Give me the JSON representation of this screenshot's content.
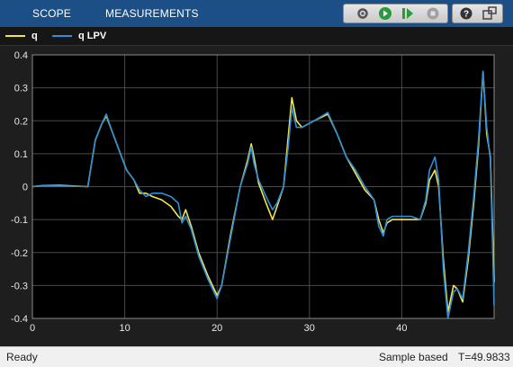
{
  "toolbar": {
    "tabs": [
      {
        "label": "SCOPE"
      },
      {
        "label": "MEASUREMENTS"
      }
    ],
    "buttons": [
      "settings-icon",
      "run-icon",
      "step-forward-icon",
      "stop-icon",
      "help-icon",
      "undock-icon"
    ]
  },
  "legend": [
    {
      "name": "q",
      "color": "#f2e44a"
    },
    {
      "name": "q LPV",
      "color": "#2f8fd6"
    }
  ],
  "status": {
    "left": "Ready",
    "mode": "Sample based",
    "time": "T=49.9833"
  },
  "chart_data": {
    "type": "line",
    "xlim": [
      0,
      50
    ],
    "ylim": [
      -0.4,
      0.4
    ],
    "xticks": [
      0,
      10,
      20,
      30,
      40
    ],
    "yticks": [
      0.4,
      0.3,
      0.2,
      0.1,
      0,
      -0.1,
      -0.2,
      -0.3,
      -0.4
    ],
    "grid": true,
    "background": "#000000",
    "series": [
      {
        "name": "q",
        "color": "#f2e44a",
        "points": [
          [
            0,
            0
          ],
          [
            1,
            0.003
          ],
          [
            3,
            0.004
          ],
          [
            6,
            0
          ],
          [
            6.4,
            0.07
          ],
          [
            6.8,
            0.14
          ],
          [
            7.5,
            0.19
          ],
          [
            8,
            0.215
          ],
          [
            8.6,
            0.17
          ],
          [
            9.4,
            0.11
          ],
          [
            10.2,
            0.05
          ],
          [
            11,
            0.02
          ],
          [
            11.6,
            -0.02
          ],
          [
            12.3,
            -0.02
          ],
          [
            13,
            -0.03
          ],
          [
            14,
            -0.04
          ],
          [
            15,
            -0.06
          ],
          [
            15.8,
            -0.09
          ],
          [
            16.2,
            -0.1
          ],
          [
            16.6,
            -0.07
          ],
          [
            17.2,
            -0.12
          ],
          [
            18,
            -0.2
          ],
          [
            19,
            -0.27
          ],
          [
            20,
            -0.33
          ],
          [
            20.5,
            -0.3
          ],
          [
            21.5,
            -0.14
          ],
          [
            22.5,
            0
          ],
          [
            23.3,
            0.08
          ],
          [
            23.7,
            0.13
          ],
          [
            24,
            0.09
          ],
          [
            24.5,
            0.01
          ],
          [
            25.3,
            -0.05
          ],
          [
            26,
            -0.1
          ],
          [
            26.5,
            -0.06
          ],
          [
            27.2,
            0
          ],
          [
            27.7,
            0.15
          ],
          [
            28.1,
            0.27
          ],
          [
            28.6,
            0.2
          ],
          [
            29.2,
            0.18
          ],
          [
            30.5,
            0.2
          ],
          [
            32,
            0.22
          ],
          [
            33,
            0.16
          ],
          [
            34,
            0.09
          ],
          [
            35,
            0.04
          ],
          [
            36,
            -0.01
          ],
          [
            37,
            -0.04
          ],
          [
            37.5,
            -0.1
          ],
          [
            38,
            -0.14
          ],
          [
            38.4,
            -0.11
          ],
          [
            39,
            -0.1
          ],
          [
            41,
            -0.1
          ],
          [
            42,
            -0.1
          ],
          [
            42.6,
            -0.05
          ],
          [
            43,
            0.02
          ],
          [
            43.6,
            0.05
          ],
          [
            44,
            0
          ],
          [
            44.5,
            -0.22
          ],
          [
            45,
            -0.38
          ],
          [
            45.6,
            -0.3
          ],
          [
            46,
            -0.31
          ],
          [
            46.6,
            -0.35
          ],
          [
            47.2,
            -0.22
          ],
          [
            47.8,
            -0.05
          ],
          [
            48.3,
            0.12
          ],
          [
            48.8,
            0.35
          ],
          [
            49.2,
            0.16
          ],
          [
            49.6,
            0.09
          ],
          [
            50,
            -0.29
          ]
        ]
      },
      {
        "name": "q LPV",
        "color": "#2f8fd6",
        "points": [
          [
            0,
            0
          ],
          [
            1,
            0.002
          ],
          [
            3,
            0.002
          ],
          [
            6,
            0
          ],
          [
            6.4,
            0.07
          ],
          [
            6.8,
            0.14
          ],
          [
            7.5,
            0.19
          ],
          [
            8,
            0.22
          ],
          [
            8.6,
            0.17
          ],
          [
            9.4,
            0.11
          ],
          [
            10.2,
            0.05
          ],
          [
            11,
            0.02
          ],
          [
            11.6,
            -0.01
          ],
          [
            12.3,
            -0.03
          ],
          [
            13,
            -0.02
          ],
          [
            14,
            -0.02
          ],
          [
            15,
            -0.03
          ],
          [
            15.8,
            -0.05
          ],
          [
            16.2,
            -0.11
          ],
          [
            16.6,
            -0.09
          ],
          [
            17.2,
            -0.13
          ],
          [
            18,
            -0.21
          ],
          [
            19,
            -0.28
          ],
          [
            20,
            -0.34
          ],
          [
            20.5,
            -0.3
          ],
          [
            21.5,
            -0.15
          ],
          [
            22.5,
            0
          ],
          [
            23.3,
            0.07
          ],
          [
            23.7,
            0.12
          ],
          [
            24,
            0.07
          ],
          [
            24.5,
            0.02
          ],
          [
            25.3,
            -0.03
          ],
          [
            26,
            -0.07
          ],
          [
            26.5,
            -0.05
          ],
          [
            27.2,
            0
          ],
          [
            27.7,
            0.12
          ],
          [
            28.1,
            0.24
          ],
          [
            28.6,
            0.18
          ],
          [
            29.2,
            0.18
          ],
          [
            30.5,
            0.2
          ],
          [
            32,
            0.225
          ],
          [
            33,
            0.16
          ],
          [
            34,
            0.09
          ],
          [
            35,
            0.05
          ],
          [
            36,
            0
          ],
          [
            37,
            -0.04
          ],
          [
            37.5,
            -0.12
          ],
          [
            38,
            -0.15
          ],
          [
            38.4,
            -0.1
          ],
          [
            39,
            -0.09
          ],
          [
            41,
            -0.09
          ],
          [
            42,
            -0.1
          ],
          [
            42.6,
            -0.04
          ],
          [
            43,
            0.05
          ],
          [
            43.6,
            0.09
          ],
          [
            44,
            0.02
          ],
          [
            44.5,
            -0.25
          ],
          [
            45,
            -0.42
          ],
          [
            45.6,
            -0.32
          ],
          [
            46,
            -0.31
          ],
          [
            46.6,
            -0.34
          ],
          [
            47.2,
            -0.2
          ],
          [
            47.8,
            -0.03
          ],
          [
            48.3,
            0.14
          ],
          [
            48.8,
            0.35
          ],
          [
            49.2,
            0.18
          ],
          [
            49.6,
            0.08
          ],
          [
            50,
            -0.36
          ]
        ]
      }
    ]
  }
}
